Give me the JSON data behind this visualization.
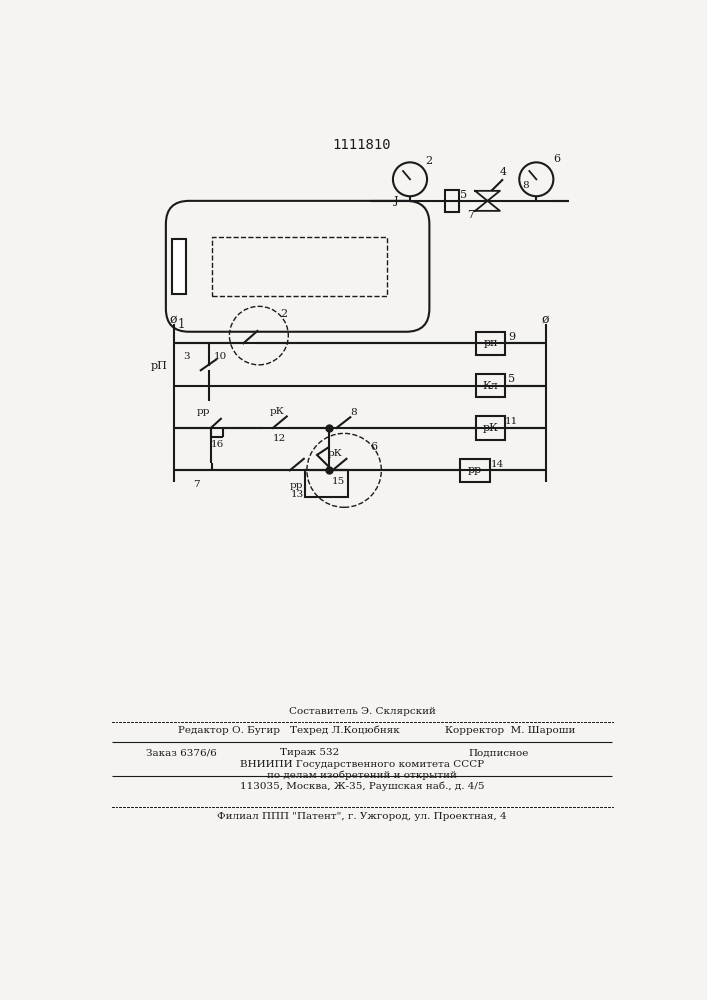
{
  "title": "1111810",
  "bg_color": "#f5f4f0",
  "line_color": "#1a1a1a",
  "footer": {
    "line1": "Составитель Э. Склярский",
    "line2a": "Редактор О. Бугир",
    "line2b": "Техред Л.Коцюбняк",
    "line2c": "Корректор  М. Шароши",
    "line3a": "Заказ 6376/6",
    "line3b": "Тираж 532",
    "line3c": "Подписное",
    "line4": "ВНИИПИ Государственного комитета СССР",
    "line5": "по делам изобретений и открытий",
    "line6": "113035, Москва, Ж-35, Раушская наб., д. 4/5",
    "line7": "Филиал ППП \"Патент\", г. Ужгород, ул. Проектная, 4"
  }
}
